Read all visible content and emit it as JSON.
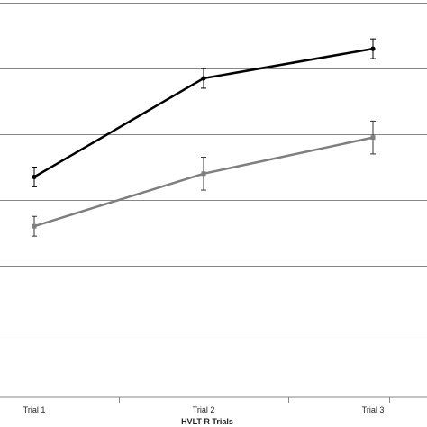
{
  "chart_data": {
    "type": "line",
    "categories": [
      "Trial 1",
      "Trial 2",
      "Trial 3"
    ],
    "xlabel": "HVLT-R Trials",
    "ylim": [
      0,
      6
    ],
    "grid": true,
    "gridlines": [
      1,
      2,
      3,
      4,
      5,
      6
    ],
    "series": [
      {
        "values": [
          3.35,
          4.85,
          5.3
        ],
        "errors": [
          0.15,
          0.15,
          0.15
        ],
        "color": "#000000",
        "marker": "circle"
      },
      {
        "values": [
          2.6,
          3.4,
          3.95
        ],
        "errors": [
          0.15,
          0.25,
          0.25
        ],
        "color": "#7f7f7f",
        "marker": "square"
      }
    ]
  }
}
